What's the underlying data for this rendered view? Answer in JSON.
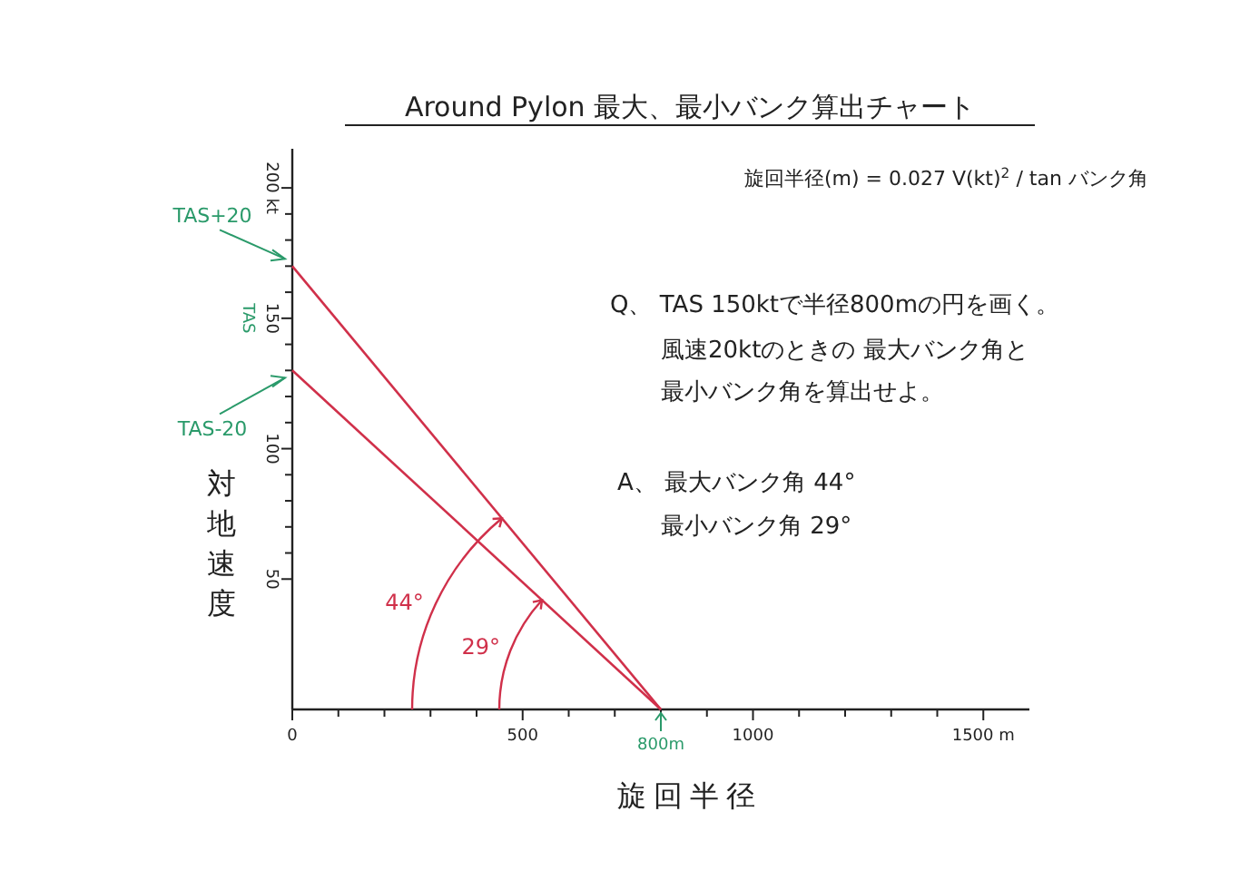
{
  "chart_data": {
    "type": "line",
    "title": "Around Pylon 最大、最小バンク算出チャート",
    "xlabel": "旋回半径",
    "ylabel": "対地速度",
    "x": [
      0,
      800
    ],
    "series": [
      {
        "color": "#d0304a",
        "values": [
          170,
          0
        ]
      },
      {
        "color": "#d0304a",
        "values": [
          130,
          0
        ]
      }
    ],
    "xlim": [
      0,
      1600
    ],
    "xticks": [
      0,
      {
        "value": 100,
        "label": null
      },
      {
        "value": 200,
        "label": null
      },
      {
        "value": 300,
        "label": null
      },
      {
        "value": 400,
        "label": null
      },
      500,
      {
        "value": 600,
        "label": null
      },
      {
        "value": 700,
        "label": null
      },
      {
        "value": 800,
        "label": null
      },
      {
        "value": 900,
        "label": null
      },
      1000,
      {
        "value": 1100,
        "label": null
      },
      {
        "value": 1200,
        "label": null
      },
      {
        "value": 1300,
        "label": null
      },
      {
        "value": 1400,
        "label": null
      },
      {
        "value": 1500,
        "label": "1500 m"
      }
    ],
    "ylim": [
      0,
      215
    ],
    "yticks": [
      50,
      {
        "value": 60,
        "label": null
      },
      {
        "value": 70,
        "label": null
      },
      {
        "value": 80,
        "label": null
      },
      {
        "value": 90,
        "label": null
      },
      100,
      {
        "value": 110,
        "label": null
      },
      {
        "value": 120,
        "label": null
      },
      {
        "value": 130,
        "label": null
      },
      {
        "value": 140,
        "label": null
      },
      150,
      {
        "value": 160,
        "label": null
      },
      {
        "value": 170,
        "label": null
      },
      {
        "value": 180,
        "label": null
      },
      {
        "value": 190,
        "label": null
      },
      {
        "value": 200,
        "label": "200 kt"
      }
    ],
    "annotations": [
      {
        "text": "TAS+20",
        "x": 0,
        "y": 170
      },
      {
        "text": "TAS-20",
        "x": 0,
        "y": 130
      },
      "TAS",
      "800m",
      "44°",
      "29°",
      "旋回半径(m) = 0.027 V(kt)$^{2}$ / tan バンク角",
      "Q、 TAS 150ktで半径800mの円を画く。",
      "風速20ktのときの 最大バンク角と",
      "最小バンク角を算出せよ。",
      "A、 最大バンク角 44°",
      "最小バンク角 29°"
    ],
    "grid": false,
    "marker": "none",
    "line_style": "solid"
  }
}
